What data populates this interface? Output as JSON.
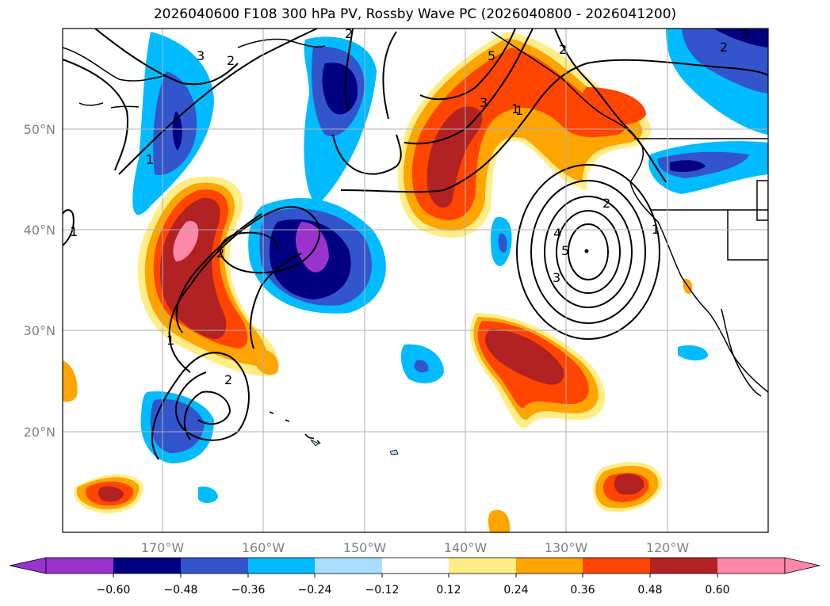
{
  "title": "2026040600 F108 300 hPa PV, Rossby Wave PC (2026040800 - 2026041200)",
  "map": {
    "lat_labels": [
      "50°N",
      "40°N",
      "30°N",
      "20°N"
    ],
    "lon_labels": [
      "170°W",
      "160°W",
      "150°W",
      "140°W",
      "130°W",
      "120°W"
    ],
    "contour_labels": [
      "3",
      "2",
      "1",
      "2",
      "3",
      "5",
      "2",
      "1",
      "1",
      "2",
      "1",
      "2",
      "1",
      "2",
      "2",
      "3",
      "4",
      "5",
      "1",
      "3"
    ]
  },
  "colorbar": {
    "ticks": [
      "−0.60",
      "−0.48",
      "−0.36",
      "−0.24",
      "−0.12",
      "0.12",
      "0.24",
      "0.36",
      "0.48",
      "0.60"
    ],
    "colors": [
      "#9933cc",
      "#000080",
      "#3355cc",
      "#00bbff",
      "#aaddff",
      "#ffffff",
      "#ffee88",
      "#ffa500",
      "#ff4500",
      "#b22222",
      "#ff88aa"
    ]
  },
  "colors": {
    "neg_strong": "#000080",
    "neg_mid": "#3355cc",
    "neg_weak": "#00bbff",
    "neg_faint": "#aaddff",
    "pos_faint": "#ffee88",
    "pos_weak": "#ffa500",
    "pos_mid": "#ff4500",
    "pos_strong": "#b22222",
    "pos_max": "#ff88aa",
    "neg_max": "#9933cc"
  }
}
